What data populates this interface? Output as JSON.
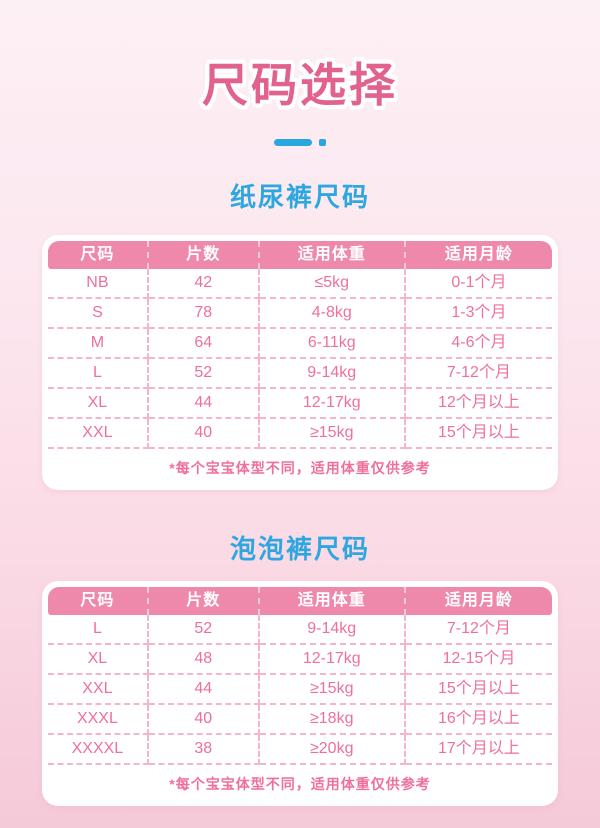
{
  "page": {
    "title": "尺码选择"
  },
  "colors": {
    "title_pink": "#e2628e",
    "header_pink": "#ee89ab",
    "cell_text_pink": "#ef6f9d",
    "dashed_line_pink": "#f6b6ca",
    "note_pink": "#ef6f9d",
    "accent_blue": "#2aa7e1",
    "card_background": "#ffffff",
    "page_background_top": "#fdf0f5",
    "page_background_bottom": "#f5c9d8"
  },
  "sections": [
    {
      "title": "纸尿裤尺码",
      "columns": [
        "尺码",
        "片数",
        "适用体重",
        "适用月龄"
      ],
      "rows": [
        [
          "NB",
          "42",
          "≤5kg",
          "0-1个月"
        ],
        [
          "S",
          "78",
          "4-8kg",
          "1-3个月"
        ],
        [
          "M",
          "64",
          "6-11kg",
          "4-6个月"
        ],
        [
          "L",
          "52",
          "9-14kg",
          "7-12个月"
        ],
        [
          "XL",
          "44",
          "12-17kg",
          "12个月以上"
        ],
        [
          "XXL",
          "40",
          "≥15kg",
          "15个月以上"
        ]
      ],
      "note": "*每个宝宝体型不同，适用体重仅供参考"
    },
    {
      "title": "泡泡裤尺码",
      "columns": [
        "尺码",
        "片数",
        "适用体重",
        "适用月龄"
      ],
      "rows": [
        [
          "L",
          "52",
          "9-14kg",
          "7-12个月"
        ],
        [
          "XL",
          "48",
          "12-17kg",
          "12-15个月"
        ],
        [
          "XXL",
          "44",
          "≥15kg",
          "15个月以上"
        ],
        [
          "XXXL",
          "40",
          "≥18kg",
          "16个月以上"
        ],
        [
          "XXXXL",
          "38",
          "≥20kg",
          "17个月以上"
        ]
      ],
      "note": "*每个宝宝体型不同，适用体重仅供参考"
    }
  ]
}
